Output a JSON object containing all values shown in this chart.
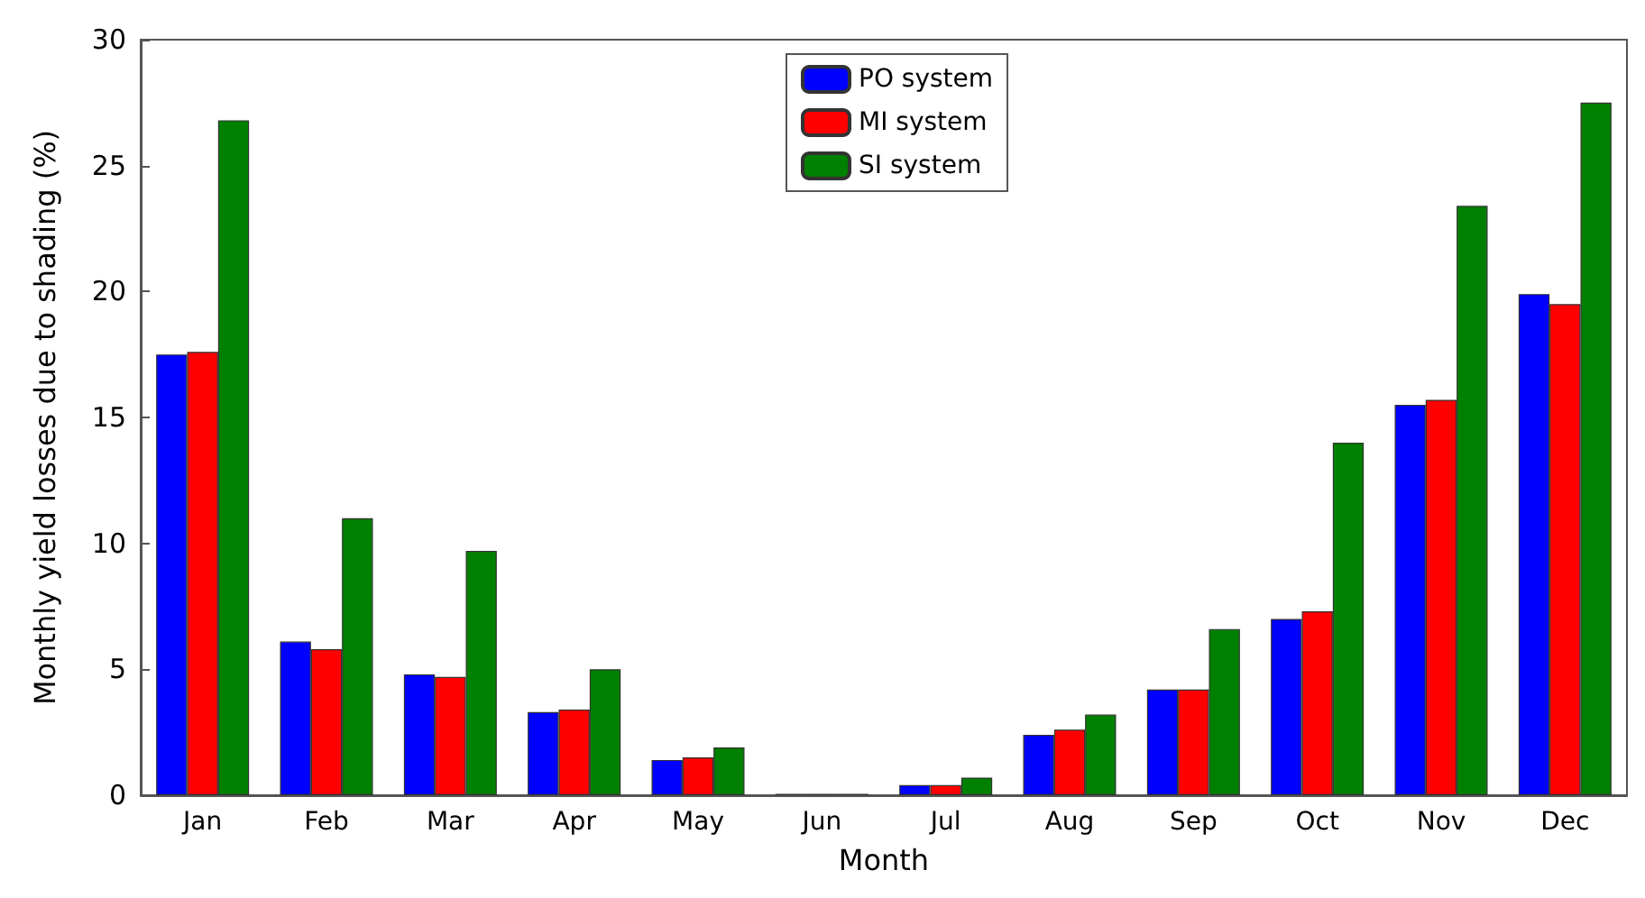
{
  "chart_data": {
    "type": "bar",
    "xlabel": "Month",
    "ylabel": "Monthly yield losses due to shading (%)",
    "categories": [
      "Jan",
      "Feb",
      "Mar",
      "Apr",
      "May",
      "Jun",
      "Jul",
      "Aug",
      "Sep",
      "Oct",
      "Nov",
      "Dec"
    ],
    "series": [
      {
        "name": "PO system",
        "color": "#0000ff",
        "values": [
          17.5,
          6.1,
          4.8,
          3.3,
          1.4,
          0.05,
          0.4,
          2.4,
          4.2,
          7.0,
          15.5,
          19.9
        ]
      },
      {
        "name": "MI system",
        "color": "#ff0000",
        "values": [
          17.6,
          5.8,
          4.7,
          3.4,
          1.5,
          0.05,
          0.4,
          2.6,
          4.2,
          7.3,
          15.7,
          19.5
        ]
      },
      {
        "name": "SI system",
        "color": "#008000",
        "values": [
          26.8,
          11.0,
          9.7,
          5.0,
          1.9,
          0.05,
          0.7,
          3.2,
          6.6,
          14.0,
          23.4,
          27.5
        ]
      }
    ],
    "ylim": [
      0,
      30
    ],
    "yticks": [
      0,
      5,
      10,
      15,
      20,
      25,
      30
    ],
    "grid": false,
    "legend": "top"
  }
}
